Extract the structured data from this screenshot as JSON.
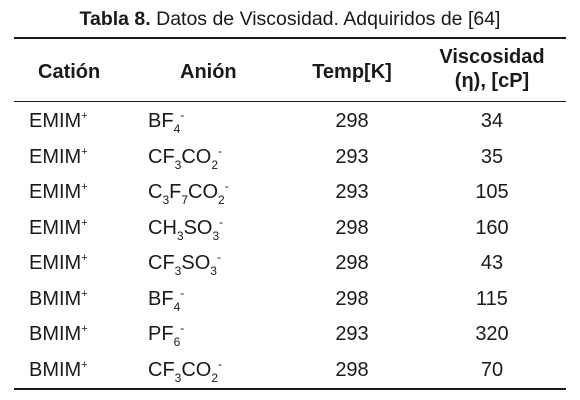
{
  "caption": {
    "label": "Tabla 8.",
    "text": " Datos de Viscosidad. Adquiridos de [64]"
  },
  "headers": {
    "cation": "Catión",
    "anion": "Anión",
    "temp": "Temp[K]",
    "viscosity_line1": "Viscosidad",
    "viscosity_line2": "(η), [cP]"
  },
  "rows": [
    {
      "cation": "EMIM",
      "cation_charge": "+",
      "anion_parts": [
        [
          "t",
          "BF"
        ],
        [
          "sub",
          "4"
        ],
        [
          "sup",
          "-"
        ]
      ],
      "temp": "298",
      "viscosity": "34"
    },
    {
      "cation": "EMIM",
      "cation_charge": "+",
      "anion_parts": [
        [
          "t",
          "CF"
        ],
        [
          "sub",
          "3"
        ],
        [
          "t",
          "CO"
        ],
        [
          "sub",
          "2"
        ],
        [
          "sup",
          "-"
        ]
      ],
      "temp": "293",
      "viscosity": "35"
    },
    {
      "cation": "EMIM",
      "cation_charge": "+",
      "anion_parts": [
        [
          "t",
          "C"
        ],
        [
          "sub",
          "3"
        ],
        [
          "t",
          "F"
        ],
        [
          "sub",
          "7"
        ],
        [
          "t",
          "CO"
        ],
        [
          "sub",
          "2"
        ],
        [
          "sup",
          "-"
        ]
      ],
      "temp": "293",
      "viscosity": "105"
    },
    {
      "cation": "EMIM",
      "cation_charge": "+",
      "anion_parts": [
        [
          "t",
          "CH"
        ],
        [
          "sub",
          "3"
        ],
        [
          "t",
          "SO"
        ],
        [
          "sub",
          "3"
        ],
        [
          "sup",
          "-"
        ]
      ],
      "temp": "298",
      "viscosity": "160"
    },
    {
      "cation": "EMIM",
      "cation_charge": "+",
      "anion_parts": [
        [
          "t",
          "CF"
        ],
        [
          "sub",
          "3"
        ],
        [
          "t",
          "SO"
        ],
        [
          "sub",
          "3"
        ],
        [
          "sup",
          "-"
        ]
      ],
      "temp": "298",
      "viscosity": "43"
    },
    {
      "cation": "BMIM",
      "cation_charge": "+",
      "anion_parts": [
        [
          "t",
          "BF"
        ],
        [
          "sub",
          "4"
        ],
        [
          "sup",
          "-"
        ]
      ],
      "temp": "298",
      "viscosity": "115"
    },
    {
      "cation": "BMIM",
      "cation_charge": "+",
      "anion_parts": [
        [
          "t",
          "PF"
        ],
        [
          "sub",
          "6"
        ],
        [
          "sup",
          "-"
        ]
      ],
      "temp": "293",
      "viscosity": "320"
    },
    {
      "cation": "BMIM",
      "cation_charge": "+",
      "anion_parts": [
        [
          "t",
          "CF"
        ],
        [
          "sub",
          "3"
        ],
        [
          "t",
          "CO"
        ],
        [
          "sub",
          "2"
        ],
        [
          "sup",
          "-"
        ]
      ],
      "temp": "298",
      "viscosity": "70"
    }
  ]
}
